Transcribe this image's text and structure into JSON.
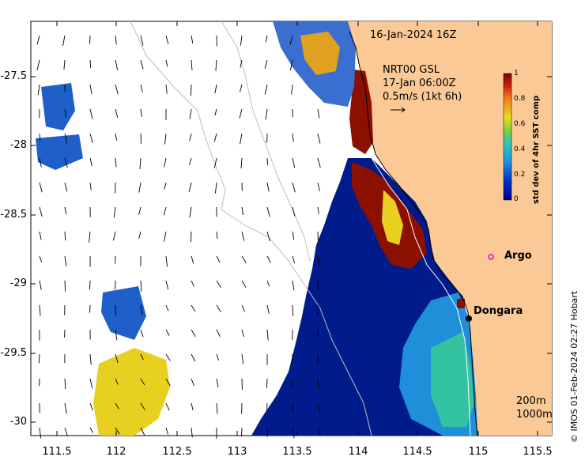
{
  "map": {
    "date_label": "16-Jan-2024 16Z",
    "current_label_1": "NRT00 GSL",
    "current_label_2": "17-Jan 06:00Z",
    "current_label_3": "0.5m/s (1kt 6h)",
    "colorbar_title": "std dev of 4hr SST comp",
    "colorbar_ticks": [
      "1",
      "0.8",
      "0.6",
      "0.4",
      "0.2",
      "0"
    ],
    "x_ticks": [
      "111.5",
      "112",
      "112.5",
      "113",
      "113.5",
      "114",
      "114.5",
      "115",
      "115.5"
    ],
    "y_ticks": [
      "-27.5",
      "-28",
      "-28.5",
      "-29",
      "-29.5",
      "-30"
    ],
    "places": [
      {
        "name": "Argo"
      },
      {
        "name": "Dongara"
      }
    ],
    "isobath_labels": [
      "200m",
      "1000m"
    ],
    "credit": "© IMOS 01-Feb-2024 02:27 Hobart",
    "colors": {
      "land": "#fbc996",
      "deep_blue": "#001b8c",
      "high": "#8b1000"
    }
  }
}
